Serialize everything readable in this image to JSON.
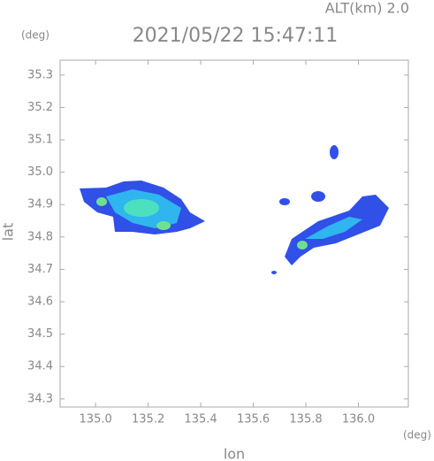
{
  "chart_data": {
    "type": "radar-map",
    "title": "2021/05/22 15:47:11",
    "subtitle": "ALT(km) 2.0",
    "x_label": "lon",
    "y_label": "lat",
    "x_unit": "(deg)",
    "y_unit": "(deg)",
    "xlim": [
      134.865,
      136.19
    ],
    "ylim": [
      34.275,
      35.346
    ],
    "xticks": [
      {
        "value": 135,
        "label": "135.0"
      },
      135.2,
      135.4,
      135.6,
      135.8,
      {
        "value": 136,
        "label": "136.0"
      }
    ],
    "yticks": [
      34.3,
      34.4,
      34.5,
      34.6,
      34.7,
      34.8,
      34.9,
      {
        "value": 35,
        "label": "35.0"
      },
      35.1,
      35.2,
      35.3
    ]
  }
}
